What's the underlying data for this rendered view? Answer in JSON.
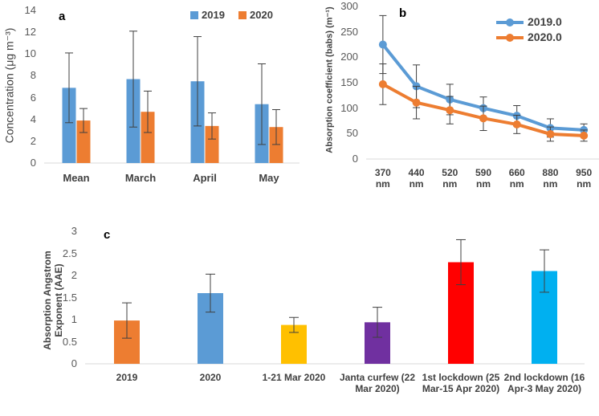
{
  "chart_data": [
    {
      "type": "bar",
      "title": "a",
      "y_label": "Concentration (μg m⁻³)",
      "categories": [
        "Mean",
        "March",
        "April",
        "May"
      ],
      "series": [
        {
          "name": "2019",
          "color": "#5b9bd5",
          "values": [
            6.9,
            7.7,
            7.5,
            5.4
          ],
          "errors": [
            3.2,
            4.4,
            4.1,
            3.7
          ]
        },
        {
          "name": "2020",
          "color": "#ed7d31",
          "values": [
            3.9,
            4.7,
            3.4,
            3.3
          ],
          "errors": [
            1.1,
            1.9,
            1.2,
            1.6
          ]
        }
      ],
      "ylim": [
        0,
        14
      ],
      "yticks": [
        0,
        2,
        4,
        6,
        8,
        10,
        12,
        14
      ],
      "legend": "top"
    },
    {
      "type": "line",
      "title": "b",
      "y_label": "Absorption coefficient (babs) (m⁻¹)",
      "categories": [
        "370 nm",
        "440 nm",
        "520 nm",
        "590 nm",
        "660 nm",
        "880 nm",
        "950 nm"
      ],
      "series": [
        {
          "name": "2019.0",
          "color": "#5b9bd5",
          "values": [
            225,
            143,
            117,
            100,
            85,
            61,
            57
          ],
          "errors": [
            57,
            42,
            30,
            22,
            20,
            18,
            12
          ]
        },
        {
          "name": "2020.0",
          "color": "#ed7d31",
          "values": [
            147,
            111,
            96,
            80,
            68,
            49,
            46
          ],
          "errors": [
            40,
            32,
            27,
            24,
            18,
            14,
            11
          ]
        }
      ],
      "ylim": [
        0,
        300
      ],
      "yticks": [
        0,
        50,
        100,
        150,
        200,
        250,
        300
      ],
      "legend": "upper right"
    },
    {
      "type": "bar",
      "title": "c",
      "y_label": "Absorption Angstrom Exponent (AAE)",
      "categories": [
        "2019",
        "2020",
        "1-21 Mar 2020",
        "Janta curfew (22 Mar 2020)",
        "1st lockdown (25 Mar-15 Apr 2020)",
        "2nd lockdown (16 Apr-3 May 2020)"
      ],
      "series": [
        {
          "colors": [
            "#ed7d31",
            "#5b9bd5",
            "#ffc000",
            "#7030a0",
            "#ff0000",
            "#00b0f0"
          ],
          "values": [
            0.98,
            1.6,
            0.88,
            0.94,
            2.3,
            2.1
          ],
          "errors": [
            0.4,
            0.43,
            0.17,
            0.34,
            0.51,
            0.48
          ]
        }
      ],
      "ylim": [
        0,
        3
      ],
      "yticks": [
        0,
        0.5,
        1,
        1.5,
        2,
        2.5,
        3
      ]
    }
  ]
}
